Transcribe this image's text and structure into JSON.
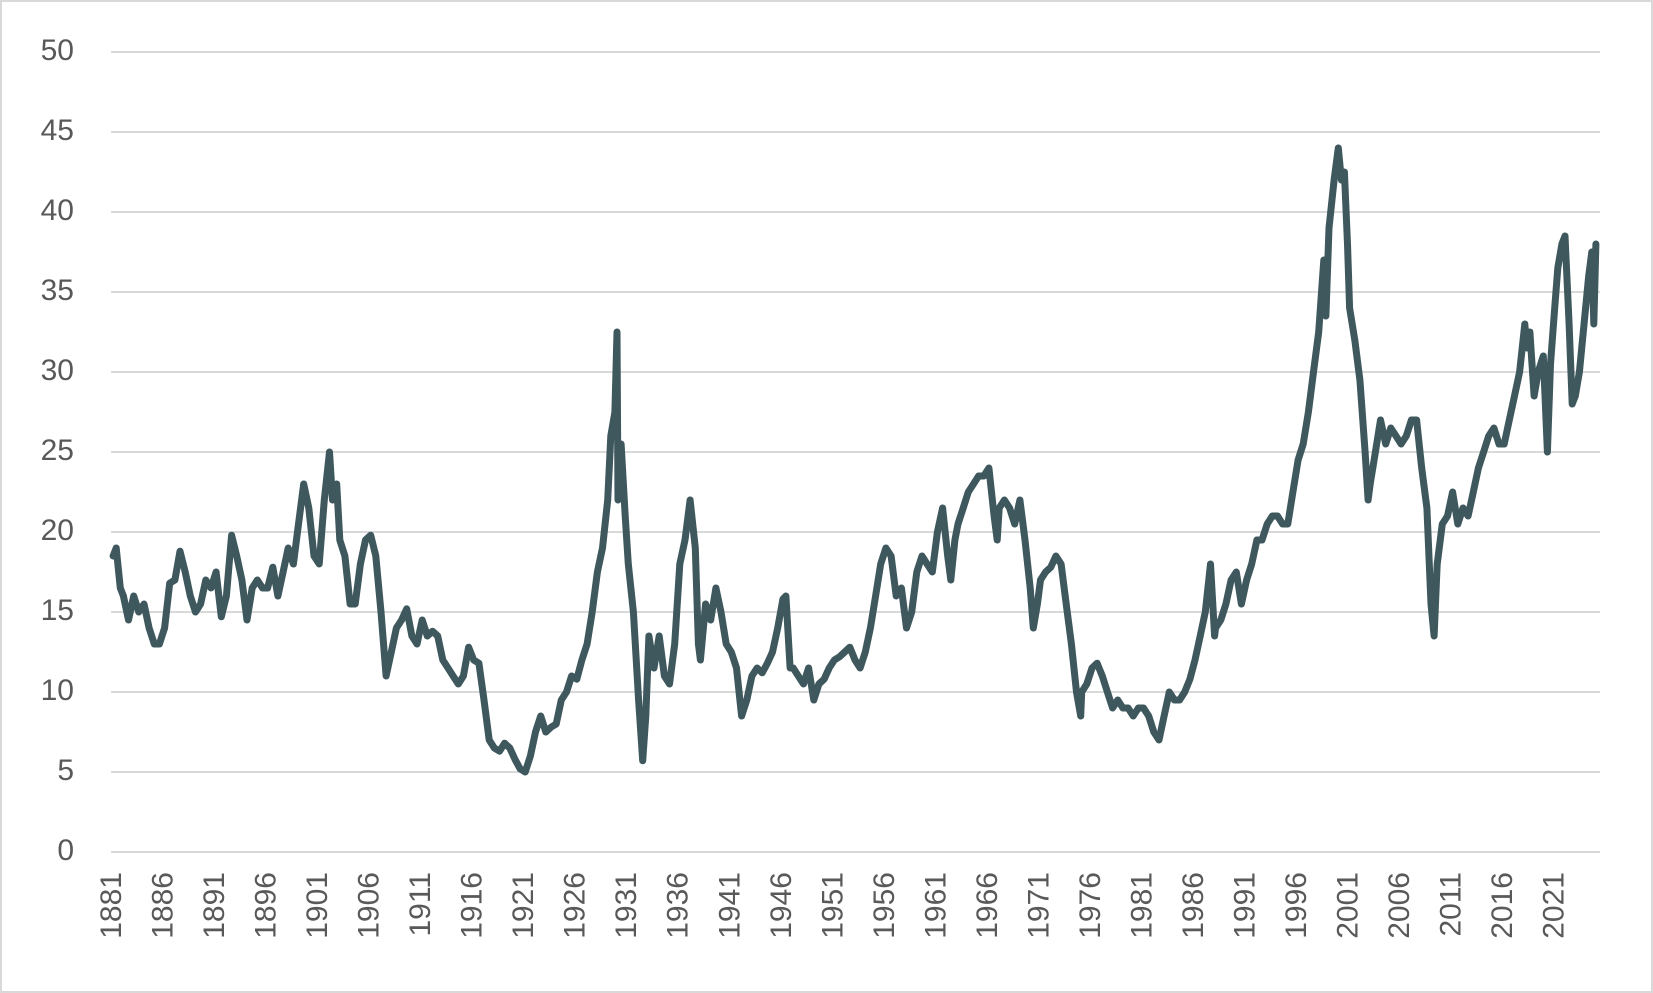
{
  "chart_data": {
    "type": "line",
    "x": [
      1881,
      1881.3,
      1881.7,
      1882,
      1882.5,
      1883,
      1883.5,
      1884,
      1884.5,
      1885,
      1885.5,
      1886,
      1886.5,
      1887,
      1887.5,
      1888,
      1888.5,
      1889,
      1889.5,
      1890,
      1890.5,
      1891,
      1891.5,
      1892,
      1892.5,
      1893,
      1893.5,
      1894,
      1894.5,
      1895,
      1895.5,
      1896,
      1896.5,
      1897,
      1897.5,
      1898,
      1898.5,
      1899,
      1899.5,
      1900,
      1900.5,
      1901,
      1901.5,
      1902,
      1902.3,
      1902.7,
      1903,
      1903.5,
      1904,
      1904.5,
      1905,
      1905.5,
      1906,
      1906.5,
      1907,
      1907.5,
      1908,
      1908.5,
      1909,
      1909.5,
      1910,
      1910.5,
      1911,
      1911.5,
      1912,
      1912.5,
      1913,
      1913.5,
      1914,
      1914.5,
      1915,
      1915.5,
      1916,
      1916.5,
      1917,
      1917.5,
      1918,
      1918.5,
      1919,
      1919.5,
      1920,
      1920.5,
      1921,
      1921.5,
      1922,
      1922.5,
      1923,
      1923.5,
      1924,
      1924.5,
      1925,
      1925.5,
      1926,
      1926.5,
      1927,
      1927.5,
      1928,
      1928.5,
      1929,
      1929.3,
      1929.7,
      1929.9,
      1930,
      1930.3,
      1930.7,
      1931,
      1931.5,
      1932,
      1932.4,
      1932.7,
      1933,
      1933.5,
      1934,
      1934.5,
      1935,
      1935.5,
      1936,
      1936.5,
      1937,
      1937.5,
      1937.8,
      1938,
      1938.5,
      1939,
      1939.5,
      1940,
      1940.5,
      1941,
      1941.5,
      1942,
      1942.5,
      1943,
      1943.5,
      1944,
      1944.5,
      1945,
      1945.5,
      1946,
      1946.3,
      1946.7,
      1947,
      1947.5,
      1948,
      1948.5,
      1949,
      1949.5,
      1950,
      1950.5,
      1951,
      1951.5,
      1952,
      1952.5,
      1953,
      1953.5,
      1954,
      1954.5,
      1955,
      1955.5,
      1956,
      1956.5,
      1957,
      1957.5,
      1958,
      1958.5,
      1959,
      1959.5,
      1960,
      1960.5,
      1961,
      1961.5,
      1962,
      1962.3,
      1962.7,
      1963,
      1963.5,
      1964,
      1964.5,
      1965,
      1965.5,
      1966,
      1966.5,
      1966.8,
      1967,
      1967.5,
      1968,
      1968.5,
      1969,
      1969.5,
      1970,
      1970.3,
      1970.7,
      1971,
      1971.5,
      1972,
      1972.5,
      1973,
      1973.5,
      1974,
      1974.5,
      1974.9,
      1975,
      1975.5,
      1976,
      1976.5,
      1977,
      1977.5,
      1978,
      1978.5,
      1979,
      1979.5,
      1980,
      1980.5,
      1981,
      1981.5,
      1982,
      1982.5,
      1983,
      1983.5,
      1984,
      1984.5,
      1985,
      1985.5,
      1986,
      1986.5,
      1987,
      1987.5,
      1987.9,
      1988,
      1988.5,
      1989,
      1989.5,
      1990,
      1990.5,
      1991,
      1991.5,
      1992,
      1992.5,
      1993,
      1993.5,
      1994,
      1994.5,
      1995,
      1995.5,
      1996,
      1996.5,
      1997,
      1997.5,
      1998,
      1998.5,
      1998.7,
      1999,
      1999.5,
      1999.9,
      2000.2,
      2000.5,
      2000.8,
      2001,
      2001.5,
      2002,
      2002.5,
      2002.8,
      2003,
      2003.5,
      2004,
      2004.5,
      2005,
      2005.5,
      2006,
      2006.5,
      2007,
      2007.5,
      2008,
      2008.5,
      2008.9,
      2009.2,
      2009.5,
      2010,
      2010.5,
      2011,
      2011.5,
      2012,
      2012.5,
      2013,
      2013.5,
      2014,
      2014.5,
      2015,
      2015.5,
      2016,
      2016.5,
      2017,
      2017.5,
      2018,
      2018.2,
      2018.5,
      2018.9,
      2019.3,
      2019.8,
      2020.2,
      2020.5,
      2020.9,
      2021.2,
      2021.6,
      2021.9,
      2022.3,
      2022.6,
      2022.9,
      2023.3,
      2023.6,
      2023.9,
      2024.2,
      2024.5,
      2024.7,
      2024.9
    ],
    "series": [
      {
        "color": "#3e585e",
        "values": [
          18.5,
          19,
          16.5,
          16,
          14.5,
          16,
          15,
          15.5,
          14,
          13,
          13,
          14,
          16.8,
          17,
          18.8,
          17.5,
          16,
          15,
          15.5,
          17,
          16.5,
          17.5,
          14.7,
          16,
          19.8,
          18.5,
          17,
          14.5,
          16.5,
          17,
          16.5,
          16.5,
          17.8,
          16,
          17.5,
          19,
          18,
          20.5,
          23,
          21.5,
          18.5,
          18,
          22,
          25,
          22,
          23,
          19.5,
          18.5,
          15.5,
          15.5,
          18,
          19.5,
          19.8,
          18.5,
          15,
          11,
          12.5,
          14,
          14.5,
          15.2,
          13.5,
          13,
          14.5,
          13.5,
          13.8,
          13.5,
          12,
          11.5,
          11,
          10.5,
          11,
          12.8,
          12,
          11.8,
          9.5,
          7,
          6.5,
          6.3,
          6.8,
          6.5,
          5.8,
          5.2,
          5,
          6,
          7.5,
          8.5,
          7.5,
          7.8,
          8,
          9.5,
          10,
          11,
          10.8,
          12,
          13,
          15,
          17.5,
          19,
          22,
          26,
          27.5,
          32.5,
          22,
          25.5,
          21,
          18,
          15,
          9.5,
          5.7,
          8.5,
          13.5,
          11.5,
          13.5,
          11,
          10.5,
          13,
          18,
          19.5,
          22,
          19,
          13,
          12,
          15.5,
          14.5,
          16.5,
          15,
          13,
          12.5,
          11.5,
          8.5,
          9.5,
          11,
          11.5,
          11.2,
          11.8,
          12.5,
          14,
          15.8,
          16,
          11.5,
          11.5,
          11,
          10.5,
          11.5,
          9.5,
          10.5,
          10.8,
          11.5,
          12,
          12.2,
          12.5,
          12.8,
          12,
          11.5,
          12.5,
          14,
          16,
          18,
          19,
          18.5,
          16,
          16.5,
          14,
          15,
          17.5,
          18.5,
          18,
          17.5,
          20,
          21.5,
          18.5,
          17,
          19.5,
          20.5,
          21.5,
          22.5,
          23,
          23.5,
          23.5,
          24,
          21,
          19.5,
          21.5,
          22,
          21.5,
          20.5,
          22,
          19.5,
          16.5,
          14,
          15.5,
          17,
          17.5,
          17.8,
          18.5,
          18,
          15.5,
          13,
          10,
          8.5,
          10,
          10.5,
          11.5,
          11.8,
          11,
          10,
          9,
          9.5,
          9,
          9,
          8.5,
          9,
          9,
          8.5,
          7.5,
          7,
          8.5,
          10,
          9.5,
          9.5,
          10,
          10.8,
          12,
          13.5,
          15,
          18,
          13.5,
          14,
          14.5,
          15.5,
          17,
          17.5,
          15.5,
          17,
          18,
          19.5,
          19.5,
          20.5,
          21,
          21,
          20.5,
          20.5,
          22.5,
          24.5,
          25.5,
          27.5,
          30,
          32.5,
          37,
          33.5,
          39,
          42,
          44,
          42,
          42.5,
          38,
          34,
          32,
          29.5,
          25,
          22,
          23,
          25,
          27,
          25.5,
          26.5,
          26,
          25.5,
          26,
          27,
          27,
          24,
          21.5,
          15.5,
          13.5,
          18,
          20.5,
          21,
          22.5,
          20.5,
          21.5,
          21,
          22.5,
          24,
          25,
          26,
          26.5,
          25.5,
          25.5,
          27,
          28.5,
          30,
          33,
          31.5,
          32.5,
          28.5,
          30,
          31,
          25,
          30.5,
          34,
          36.5,
          38,
          38.5,
          33,
          28,
          28.5,
          30,
          32,
          34,
          36,
          37.5,
          33,
          38
        ]
      }
    ],
    "xlim": [
      1880.8,
      2025.3
    ],
    "xticks": [
      1881,
      1886,
      1891,
      1896,
      1901,
      1906,
      1911,
      1916,
      1921,
      1926,
      1931,
      1936,
      1941,
      1946,
      1951,
      1956,
      1961,
      1966,
      1971,
      1976,
      1981,
      1986,
      1991,
      1996,
      2001,
      2006,
      2011,
      2016,
      2021
    ],
    "ylim": [
      0,
      50
    ],
    "yticks": [
      0,
      5,
      10,
      15,
      20,
      25,
      30,
      35,
      40,
      45,
      50
    ],
    "grid": true
  }
}
